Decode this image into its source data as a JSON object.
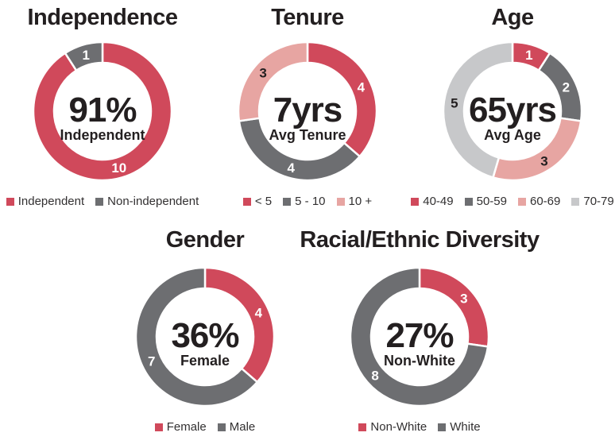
{
  "page": {
    "background": "#FFFFFF"
  },
  "colors": {
    "red": "#D0495B",
    "gray": "#6D6E71",
    "pink": "#E7A5A2",
    "light_gray": "#C7C8CA",
    "title_text": "#231F20",
    "legend_text": "#323031",
    "label_on_dark": "#FFFFFF",
    "label_on_light": "#231F20"
  },
  "chart_data": [
    {
      "id": "independence",
      "type": "pie",
      "variant": "donut",
      "title": "Independence",
      "center_value": "91%",
      "center_label": "Independent",
      "total": 11,
      "start_angle_deg": 0,
      "direction": "clockwise",
      "segments": [
        {
          "value": 10,
          "legend_label": "Independent",
          "color_key": "red",
          "value_label_color": "#FFFFFF"
        },
        {
          "value": 1,
          "legend_label": "Non-independent",
          "color_key": "gray",
          "value_label_color": "#FFFFFF"
        }
      ]
    },
    {
      "id": "tenure",
      "type": "pie",
      "variant": "donut",
      "title": "Tenure",
      "center_value": "7yrs",
      "center_label": "Avg Tenure",
      "total": 11,
      "start_angle_deg": 0,
      "direction": "clockwise",
      "segments": [
        {
          "value": 4,
          "legend_label": "< 5",
          "color_key": "red",
          "value_label_color": "#FFFFFF"
        },
        {
          "value": 4,
          "legend_label": "5 - 10",
          "color_key": "gray",
          "value_label_color": "#FFFFFF"
        },
        {
          "value": 3,
          "legend_label": "10 +",
          "color_key": "pink",
          "value_label_color": "#231F20"
        }
      ]
    },
    {
      "id": "age",
      "type": "pie",
      "variant": "donut",
      "title": "Age",
      "center_value": "65yrs",
      "center_label": "Avg Age",
      "total": 11,
      "start_angle_deg": 0,
      "direction": "clockwise",
      "segments": [
        {
          "value": 1,
          "legend_label": "40-49",
          "color_key": "red",
          "value_label_color": "#FFFFFF"
        },
        {
          "value": 2,
          "legend_label": "50-59",
          "color_key": "gray",
          "value_label_color": "#FFFFFF"
        },
        {
          "value": 3,
          "legend_label": "60-69",
          "color_key": "pink",
          "value_label_color": "#231F20"
        },
        {
          "value": 5,
          "legend_label": "70-79",
          "color_key": "light_gray",
          "value_label_color": "#231F20"
        }
      ]
    },
    {
      "id": "gender",
      "type": "pie",
      "variant": "donut",
      "title": "Gender",
      "center_value": "36%",
      "center_label": "Female",
      "total": 11,
      "start_angle_deg": 0,
      "direction": "clockwise",
      "segments": [
        {
          "value": 4,
          "legend_label": "Female",
          "color_key": "red",
          "value_label_color": "#FFFFFF"
        },
        {
          "value": 7,
          "legend_label": "Male",
          "color_key": "gray",
          "value_label_color": "#FFFFFF"
        }
      ]
    },
    {
      "id": "racial-ethnic-diversity",
      "type": "pie",
      "variant": "donut",
      "title": "Racial/Ethnic Diversity",
      "center_value": "27%",
      "center_label": "Non-White",
      "total": 11,
      "start_angle_deg": 0,
      "direction": "clockwise",
      "segments": [
        {
          "value": 3,
          "legend_label": "Non-White",
          "color_key": "red",
          "value_label_color": "#FFFFFF"
        },
        {
          "value": 8,
          "legend_label": "White",
          "color_key": "gray",
          "value_label_color": "#FFFFFF"
        }
      ]
    }
  ]
}
